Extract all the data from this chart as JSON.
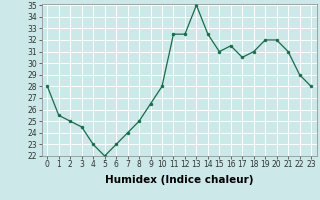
{
  "x": [
    0,
    1,
    2,
    3,
    4,
    5,
    6,
    7,
    8,
    9,
    10,
    11,
    12,
    13,
    14,
    15,
    16,
    17,
    18,
    19,
    20,
    21,
    22,
    23
  ],
  "y": [
    28.0,
    25.5,
    25.0,
    24.5,
    23.0,
    22.0,
    23.0,
    24.0,
    25.0,
    26.5,
    28.0,
    32.5,
    32.5,
    35.0,
    32.5,
    31.0,
    31.5,
    30.5,
    31.0,
    32.0,
    32.0,
    31.0,
    29.0,
    28.0
  ],
  "xlabel": "Humidex (Indice chaleur)",
  "ylim": [
    22,
    35
  ],
  "xlim": [
    -0.5,
    23.5
  ],
  "yticks": [
    22,
    23,
    24,
    25,
    26,
    27,
    28,
    29,
    30,
    31,
    32,
    33,
    34,
    35
  ],
  "xticks": [
    0,
    1,
    2,
    3,
    4,
    5,
    6,
    7,
    8,
    9,
    10,
    11,
    12,
    13,
    14,
    15,
    16,
    17,
    18,
    19,
    20,
    21,
    22,
    23
  ],
  "line_color": "#1a6b4a",
  "marker_color": "#1a6b4a",
  "bg_color": "#cce8e8",
  "grid_color": "#aad4d4",
  "tick_label_fontsize": 5.5,
  "xlabel_fontsize": 7.5,
  "xlabel_fontweight": "bold"
}
